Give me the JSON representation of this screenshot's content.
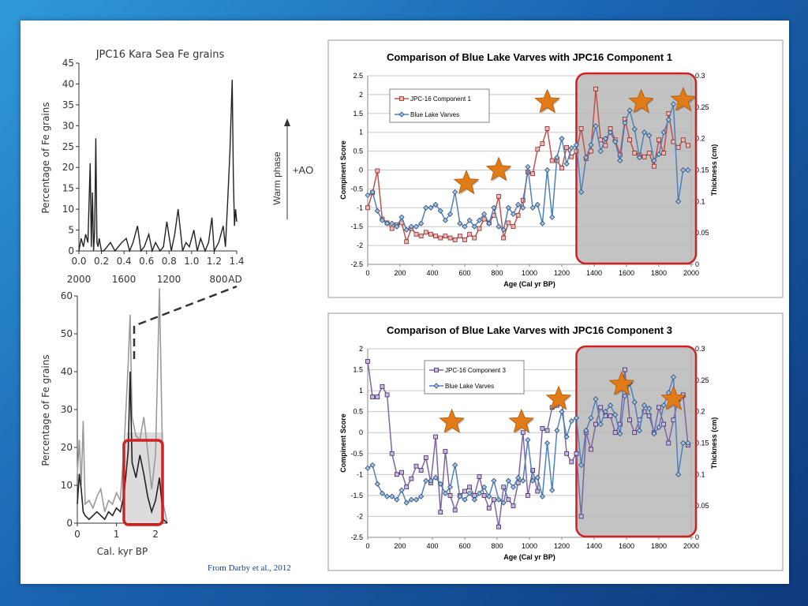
{
  "credit": "From Darby et al., 2012",
  "colors": {
    "fe_line": "#222222",
    "fe_grey": "#9a9a9a",
    "red_series": "#c0504d",
    "purple_series": "#8064a2",
    "blue_series": "#4f81bd",
    "star": "#e07b18",
    "highlight_box": "#d02020",
    "shade": "#b8b8b8"
  },
  "phase_label": "Warm phase",
  "ao_label": "+AO",
  "chart_data": [
    {
      "type": "line",
      "title": "JPC16 Kara Sea Fe grains",
      "ylabel": "Percentage of Fe grains",
      "xlim": [
        0,
        1.4
      ],
      "ylim": [
        0,
        45
      ],
      "x_ticks": [
        0.0,
        0.2,
        0.4,
        0.6,
        0.8,
        1.0,
        1.2,
        1.4
      ],
      "x_tick_labels": [
        "0.0",
        "0.2",
        "0.4",
        "0.6",
        "0.8",
        "1.0",
        "1.2",
        "1.4"
      ],
      "y_ticks": [
        0,
        5,
        10,
        15,
        20,
        25,
        30,
        35,
        40,
        45
      ],
      "secondary_axis_labels": [
        "2000",
        "1600",
        "1200",
        "800",
        "AD"
      ],
      "series": [
        {
          "x": [
            0.0,
            0.02,
            0.04,
            0.06,
            0.08,
            0.1,
            0.11,
            0.12,
            0.13,
            0.14,
            0.15,
            0.16,
            0.17,
            0.18,
            0.2,
            0.22,
            0.25,
            0.28,
            0.32,
            0.35,
            0.38,
            0.42,
            0.45,
            0.48,
            0.52,
            0.55,
            0.58,
            0.62,
            0.65,
            0.68,
            0.72,
            0.75,
            0.78,
            0.82,
            0.85,
            0.88,
            0.92,
            0.95,
            0.98,
            1.02,
            1.05,
            1.08,
            1.12,
            1.15,
            1.18,
            1.2,
            1.24,
            1.28,
            1.3,
            1.32,
            1.34,
            1.36,
            1.37,
            1.38,
            1.39,
            1.4
          ],
          "y": [
            0,
            3,
            1,
            4,
            2,
            21,
            1,
            14,
            0,
            5,
            27,
            2,
            1,
            3,
            0,
            0,
            1,
            2,
            0,
            1,
            2,
            3,
            0,
            2,
            6,
            0,
            1,
            4,
            0,
            2,
            0,
            1,
            7,
            0,
            4,
            10,
            0,
            2,
            1,
            5,
            0,
            3,
            0,
            2,
            8,
            0,
            2,
            6,
            1,
            12,
            24,
            41,
            18,
            6,
            10,
            7
          ]
        }
      ]
    },
    {
      "type": "area",
      "xlabel": "Cal. kyr BP",
      "ylabel": "Percentage of Fe grains",
      "xlim": [
        0,
        2.5
      ],
      "ylim": [
        0,
        60
      ],
      "x_ticks": [
        0,
        1,
        2
      ],
      "y_ticks": [
        0,
        10,
        20,
        30,
        40,
        50,
        60
      ],
      "series": [
        {
          "x": [
            0.0,
            0.05,
            0.1,
            0.15,
            0.2,
            0.3,
            0.4,
            0.5,
            0.6,
            0.7,
            0.8,
            0.9,
            1.0,
            1.1,
            1.2,
            1.3,
            1.35,
            1.4,
            1.5,
            1.6,
            1.7,
            1.8,
            1.9,
            2.0,
            2.1,
            2.2,
            2.3
          ],
          "y": [
            5,
            13,
            9,
            3,
            2,
            1,
            2,
            3,
            2,
            1,
            3,
            2,
            4,
            3,
            8,
            19,
            40,
            16,
            12,
            18,
            13,
            7,
            3,
            6,
            12,
            1,
            0
          ]
        },
        {
          "x": [
            0.0,
            0.05,
            0.1,
            0.15,
            0.2,
            0.3,
            0.4,
            0.5,
            0.6,
            0.7,
            0.8,
            0.9,
            1.0,
            1.1,
            1.2,
            1.3,
            1.35,
            1.4,
            1.5,
            1.6,
            1.7,
            1.8,
            1.9,
            2.0,
            2.1,
            2.2,
            2.3
          ],
          "y": [
            13,
            22,
            10,
            27,
            5,
            6,
            4,
            7,
            9,
            3,
            6,
            5,
            8,
            6,
            21,
            42,
            55,
            28,
            23,
            22,
            28,
            19,
            9,
            18,
            62,
            5,
            0
          ]
        }
      ]
    },
    {
      "type": "line",
      "title": "Comparison of Blue Lake Varves with JPC16 Component 1",
      "xlabel": "Age (Cal yr BP)",
      "ylabel": "Compinent Score",
      "y2label": "Thickness (cm)",
      "xlim": [
        0,
        2000
      ],
      "ylim": [
        -2.5,
        2.5
      ],
      "y2lim": [
        0,
        0.3
      ],
      "x_ticks": [
        0,
        200,
        400,
        600,
        800,
        1000,
        1200,
        1400,
        1600,
        1800,
        2000
      ],
      "y_ticks": [
        -2.5,
        -2,
        -1.5,
        -1,
        -0.5,
        0,
        0.5,
        1,
        1.5,
        2,
        2.5
      ],
      "y2_ticks": [
        0,
        0.05,
        0.1,
        0.15,
        0.2,
        0.25,
        0.3
      ],
      "legend": "top-left",
      "series": [
        {
          "name": "JPC-16 Component 1",
          "axis": "left",
          "x": [
            0,
            30,
            60,
            90,
            120,
            150,
            180,
            210,
            240,
            270,
            300,
            330,
            360,
            390,
            420,
            450,
            480,
            510,
            540,
            570,
            600,
            630,
            660,
            690,
            720,
            750,
            780,
            810,
            840,
            870,
            900,
            930,
            960,
            990,
            1020,
            1050,
            1080,
            1110,
            1140,
            1170,
            1200,
            1230,
            1260,
            1290,
            1320,
            1350,
            1380,
            1410,
            1440,
            1470,
            1500,
            1530,
            1560,
            1590,
            1620,
            1650,
            1680,
            1710,
            1740,
            1770,
            1800,
            1830,
            1860,
            1890,
            1920,
            1950,
            1980
          ],
          "y": [
            -1.0,
            -0.6,
            -0.02,
            -1.3,
            -1.4,
            -1.55,
            -1.45,
            -1.4,
            -1.9,
            -1.55,
            -1.7,
            -1.75,
            -1.65,
            -1.7,
            -1.75,
            -1.8,
            -1.75,
            -1.8,
            -1.85,
            -1.75,
            -1.85,
            -1.7,
            -1.8,
            -1.55,
            -1.3,
            -1.4,
            -1.2,
            -0.7,
            -1.8,
            -1.4,
            -1.5,
            -1.2,
            -0.8,
            -0.05,
            -0.1,
            0.55,
            0.7,
            1.1,
            0.25,
            0.25,
            0.05,
            0.6,
            0.35,
            0.5,
            1.1,
            0.3,
            0.5,
            2.15,
            0.8,
            0.65,
            1.1,
            0.8,
            0.4,
            1.35,
            0.8,
            0.45,
            0.4,
            0.35,
            0.45,
            0.1,
            0.8,
            0.45,
            1.5,
            0.75,
            0.6,
            0.8,
            0.65
          ]
        },
        {
          "name": "Blue Lake Varves",
          "axis": "right",
          "x": [
            0,
            30,
            60,
            90,
            120,
            150,
            180,
            210,
            240,
            270,
            300,
            330,
            360,
            390,
            420,
            450,
            480,
            510,
            540,
            570,
            600,
            630,
            660,
            690,
            720,
            750,
            780,
            810,
            840,
            870,
            900,
            930,
            960,
            990,
            1020,
            1050,
            1080,
            1110,
            1140,
            1170,
            1200,
            1230,
            1260,
            1290,
            1320,
            1350,
            1380,
            1410,
            1440,
            1470,
            1500,
            1530,
            1560,
            1590,
            1620,
            1650,
            1680,
            1710,
            1740,
            1770,
            1800,
            1830,
            1860,
            1890,
            1920,
            1950,
            1980
          ],
          "y": [
            0.11,
            0.115,
            0.085,
            0.07,
            0.065,
            0.065,
            0.06,
            0.075,
            0.055,
            0.06,
            0.06,
            0.065,
            0.09,
            0.09,
            0.095,
            0.085,
            0.07,
            0.08,
            0.115,
            0.065,
            0.06,
            0.07,
            0.06,
            0.07,
            0.08,
            0.065,
            0.09,
            0.06,
            0.055,
            0.09,
            0.08,
            0.095,
            0.09,
            0.155,
            0.09,
            0.095,
            0.065,
            0.15,
            0.075,
            0.17,
            0.2,
            0.16,
            0.185,
            0.19,
            0.115,
            0.17,
            0.19,
            0.22,
            0.18,
            0.2,
            0.21,
            0.195,
            0.165,
            0.225,
            0.245,
            0.215,
            0.17,
            0.21,
            0.205,
            0.165,
            0.175,
            0.21,
            0.23,
            0.255,
            0.1,
            0.15,
            0.15
          ]
        }
      ],
      "annotations": [
        {
          "type": "star",
          "x": 610,
          "y": -0.35
        },
        {
          "type": "star",
          "x": 810,
          "y": 0.0
        },
        {
          "type": "star",
          "x": 1110,
          "y": 1.8
        },
        {
          "type": "star",
          "x": 1690,
          "y": 1.8
        },
        {
          "type": "star",
          "x": 1950,
          "y": 1.85
        }
      ],
      "highlight_range": [
        1290,
        2000
      ]
    },
    {
      "type": "line",
      "title": "Comparison of Blue Lake Varves with JPC16 Component 3",
      "xlabel": "Age (Cal yr BP)",
      "ylabel": "Compinent Score",
      "y2label": "Thickness (cm)",
      "xlim": [
        0,
        2000
      ],
      "ylim": [
        -2.5,
        2
      ],
      "y2lim": [
        0,
        0.3
      ],
      "x_ticks": [
        0,
        200,
        400,
        600,
        800,
        1000,
        1200,
        1400,
        1600,
        1800,
        2000
      ],
      "y_ticks": [
        -2.5,
        -2,
        -1.5,
        -1,
        -0.5,
        0,
        0.5,
        1,
        1.5,
        2
      ],
      "y2_ticks": [
        0,
        0.05,
        0.1,
        0.15,
        0.2,
        0.25,
        0.3
      ],
      "legend": "top-center",
      "series": [
        {
          "name": "JPC-16 Component 3",
          "axis": "left",
          "x": [
            0,
            30,
            60,
            90,
            120,
            150,
            180,
            210,
            240,
            270,
            300,
            330,
            360,
            390,
            420,
            450,
            480,
            510,
            540,
            570,
            600,
            630,
            660,
            690,
            720,
            750,
            780,
            810,
            840,
            870,
            900,
            930,
            960,
            990,
            1020,
            1050,
            1080,
            1110,
            1140,
            1170,
            1200,
            1230,
            1260,
            1290,
            1320,
            1350,
            1380,
            1410,
            1440,
            1470,
            1500,
            1530,
            1560,
            1590,
            1620,
            1650,
            1680,
            1710,
            1740,
            1770,
            1800,
            1830,
            1860,
            1890,
            1920,
            1950,
            1980
          ],
          "y": [
            1.7,
            0.85,
            0.85,
            1.1,
            0.9,
            -0.5,
            -1.0,
            -0.95,
            -1.3,
            -1.1,
            -0.8,
            -0.9,
            -0.6,
            -1.2,
            -0.1,
            -1.9,
            -0.45,
            -1.5,
            -1.85,
            -1.5,
            -1.4,
            -1.3,
            -1.5,
            -1.05,
            -1.5,
            -1.8,
            -1.6,
            -2.25,
            -1.3,
            -1.6,
            -1.75,
            -1.2,
            0.0,
            -1.5,
            -0.9,
            -1.4,
            0.1,
            0.05,
            0.6,
            0.65,
            0.8,
            -0.5,
            -0.7,
            -0.5,
            -2.0,
            0.0,
            -0.4,
            0.2,
            0.6,
            0.4,
            0.4,
            0.0,
            0.2,
            1.5,
            0.3,
            0.0,
            0.3,
            0.5,
            0.4,
            0.0,
            0.6,
            0.2,
            -0.25,
            0.3,
            0.8,
            0.9,
            -0.3
          ]
        },
        {
          "name": "Blue Lake Varves",
          "axis": "right",
          "x": [
            0,
            30,
            60,
            90,
            120,
            150,
            180,
            210,
            240,
            270,
            300,
            330,
            360,
            390,
            420,
            450,
            480,
            510,
            540,
            570,
            600,
            630,
            660,
            690,
            720,
            750,
            780,
            810,
            840,
            870,
            900,
            930,
            960,
            990,
            1020,
            1050,
            1080,
            1110,
            1140,
            1170,
            1200,
            1230,
            1260,
            1290,
            1320,
            1350,
            1380,
            1410,
            1440,
            1470,
            1500,
            1530,
            1560,
            1590,
            1620,
            1650,
            1680,
            1710,
            1740,
            1770,
            1800,
            1830,
            1860,
            1890,
            1920,
            1950,
            1980
          ],
          "y": [
            0.11,
            0.115,
            0.085,
            0.07,
            0.065,
            0.065,
            0.06,
            0.075,
            0.055,
            0.06,
            0.06,
            0.065,
            0.09,
            0.09,
            0.095,
            0.085,
            0.07,
            0.08,
            0.115,
            0.065,
            0.06,
            0.07,
            0.06,
            0.07,
            0.08,
            0.065,
            0.09,
            0.06,
            0.055,
            0.09,
            0.08,
            0.095,
            0.09,
            0.155,
            0.09,
            0.095,
            0.065,
            0.15,
            0.075,
            0.17,
            0.2,
            0.16,
            0.185,
            0.19,
            0.115,
            0.17,
            0.19,
            0.22,
            0.18,
            0.2,
            0.21,
            0.195,
            0.165,
            0.225,
            0.245,
            0.215,
            0.17,
            0.21,
            0.205,
            0.165,
            0.175,
            0.21,
            0.23,
            0.255,
            0.1,
            0.15,
            0.15
          ]
        }
      ],
      "annotations": [
        {
          "type": "star",
          "x": 520,
          "y": 0.25
        },
        {
          "type": "star",
          "x": 950,
          "y": 0.25
        },
        {
          "type": "star",
          "x": 1180,
          "y": 0.8
        },
        {
          "type": "star",
          "x": 1570,
          "y": 1.15
        },
        {
          "type": "star",
          "x": 1890,
          "y": 0.8
        }
      ],
      "highlight_range": [
        1290,
        2000
      ]
    }
  ]
}
